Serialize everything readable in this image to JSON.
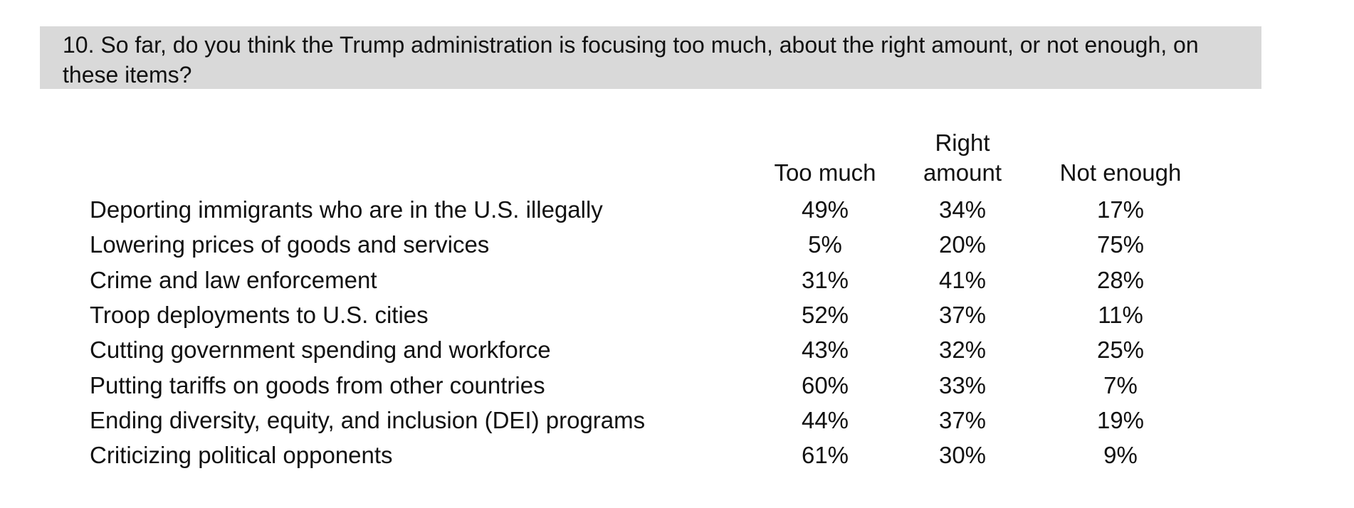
{
  "question": {
    "text": "10. So far, do you think the Trump administration is focusing too much, about the right amount, or not enough, on these items?"
  },
  "table": {
    "columns": {
      "item": "",
      "too_much": "Too much",
      "right_amount_line1": "Right",
      "right_amount_line2": "amount",
      "not_enough": "Not enough"
    },
    "rows": [
      {
        "item": "Deporting immigrants who are in the U.S. illegally",
        "too_much": "49%",
        "right_amount": "34%",
        "not_enough": "17%"
      },
      {
        "item": "Lowering prices of goods and services",
        "too_much": "5%",
        "right_amount": "20%",
        "not_enough": "75%"
      },
      {
        "item": "Crime and law enforcement",
        "too_much": "31%",
        "right_amount": "41%",
        "not_enough": "28%"
      },
      {
        "item": "Troop deployments to U.S. cities",
        "too_much": "52%",
        "right_amount": "37%",
        "not_enough": "11%"
      },
      {
        "item": "Cutting government spending and workforce",
        "too_much": "43%",
        "right_amount": "32%",
        "not_enough": "25%"
      },
      {
        "item": "Putting tariffs on goods from other countries",
        "too_much": "60%",
        "right_amount": "33%",
        "not_enough": "7%"
      },
      {
        "item": "Ending diversity, equity, and inclusion (DEI) programs",
        "too_much": "44%",
        "right_amount": "37%",
        "not_enough": "19%"
      },
      {
        "item": "Criticizing political opponents",
        "too_much": "61%",
        "right_amount": "30%",
        "not_enough": "9%"
      }
    ]
  },
  "colors": {
    "question_background": "#d9d9d9",
    "text": "#111111",
    "page_background": "#ffffff"
  }
}
